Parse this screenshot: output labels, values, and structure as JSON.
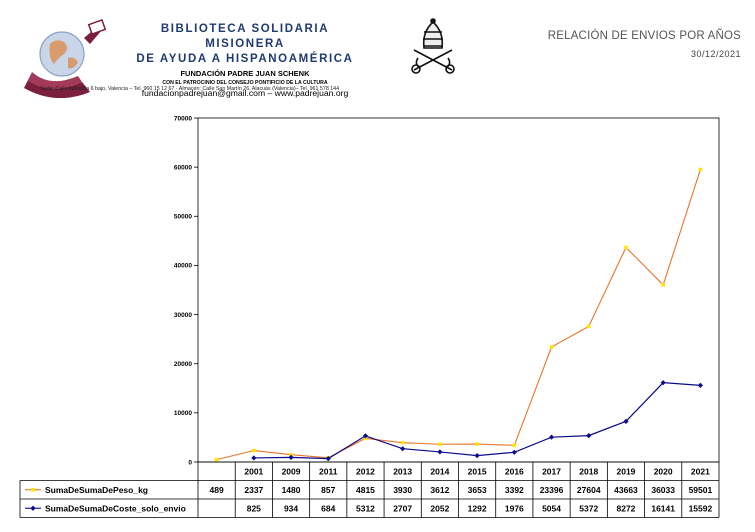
{
  "header": {
    "org_name_line1": "BIBLIOTECA SOLIDARIA MISIONERA",
    "org_name_line2": "DE AYUDA A HISPANOAMÉRICA",
    "foundation": "FUNDACIÓN PADRE JUAN SCHENK",
    "patronage": "CON EL PATROCINIO DEL CONSEJO PONTIFICIO DE LA CULTURA",
    "contact": "fundacionpadrejuan@gmail.com – www.padrejuan.org",
    "address": "Sede: Calle Industria 6 bajo, Valencia – Tel. 960 15 12 67 · Almacén: Calle San Martín 26, Alacuás (Valencia)– Tel. 961 578 144",
    "report_title": "RELACIÓN DE ENVIOS POR AÑOS",
    "report_date": "30/12/2021",
    "logo_icon": "globe-hands-logo-icon",
    "seal_icon": "papal-tiara-keys-seal-icon"
  },
  "chart_data": {
    "type": "line",
    "title": "",
    "xlabel": "",
    "ylabel": "",
    "ylim": [
      0,
      70000
    ],
    "yticks": [
      0,
      10000,
      20000,
      30000,
      40000,
      50000,
      60000,
      70000
    ],
    "grid": false,
    "legend": "bottom-left table",
    "categories": [
      "",
      "2001",
      "2009",
      "2011",
      "2012",
      "2013",
      "2014",
      "2015",
      "2016",
      "2017",
      "2018",
      "2019",
      "2020",
      "2021"
    ],
    "series": [
      {
        "name": "SumaDeSumaDePeso_kg",
        "color": "#e8762c",
        "marker": "#ffe600",
        "marker_shape": "square",
        "values": [
          489,
          2337,
          1480,
          857,
          4815,
          3930,
          3612,
          3653,
          3392,
          23396,
          27604,
          43663,
          36033,
          59501
        ]
      },
      {
        "name": "SumaDeSumaDeCoste_solo_envio",
        "color": "#0a0a8c",
        "marker": "#0a0a8c",
        "marker_shape": "diamond",
        "values": [
          null,
          825,
          934,
          684,
          5312,
          2707,
          2052,
          1292,
          1976,
          5054,
          5372,
          8272,
          16141,
          15592
        ]
      }
    ]
  }
}
